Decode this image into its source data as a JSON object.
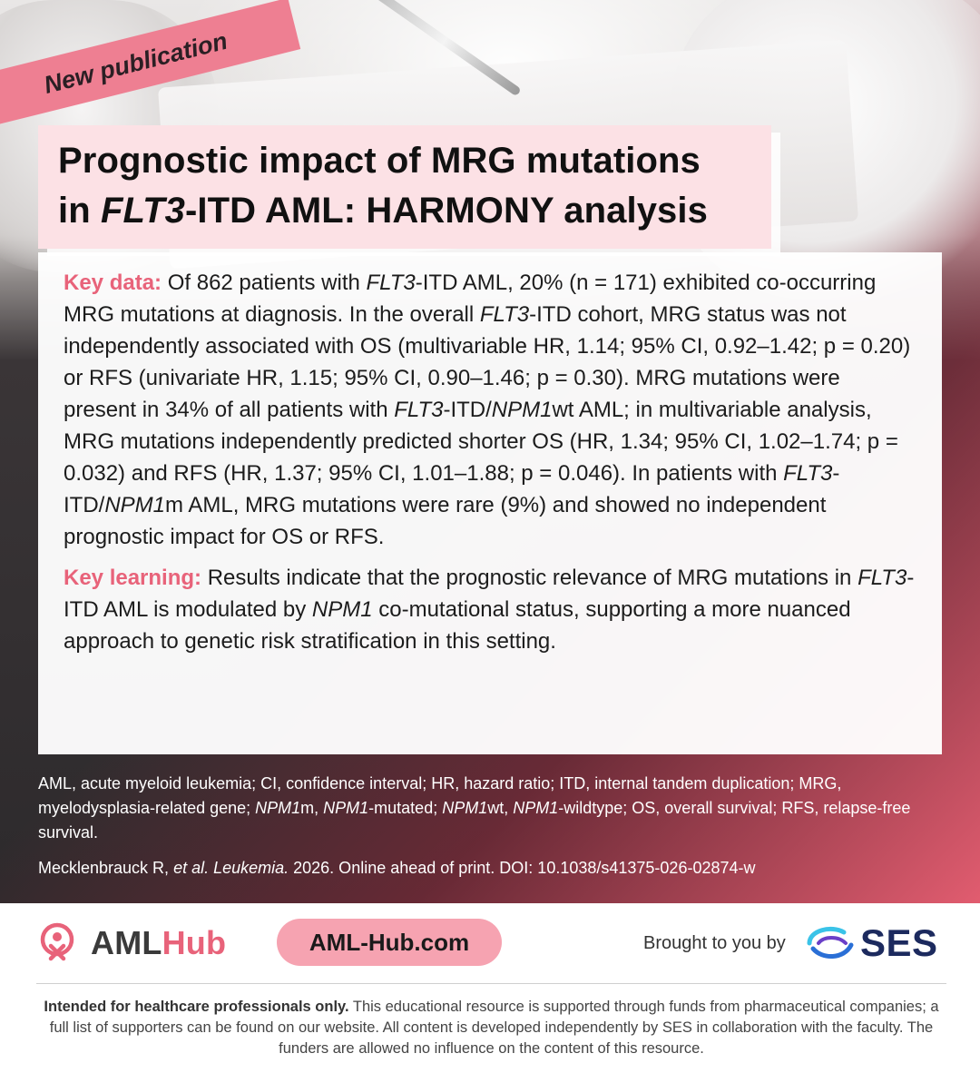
{
  "ribbon": {
    "label": "New publication"
  },
  "title": {
    "line1": "Prognostic impact of MRG mutations",
    "line2_italic": "FLT3",
    "line2_rest": "-ITD AML: HARMONY analysis"
  },
  "key_data": {
    "label": "Key data:",
    "segments": [
      {
        "t": " Of 862 patients with ",
        "i": false
      },
      {
        "t": "FLT3",
        "i": true
      },
      {
        "t": "-ITD AML, 20% (n = 171) exhibited co-occurring MRG mutations at diagnosis. In the overall ",
        "i": false
      },
      {
        "t": "FLT3",
        "i": true
      },
      {
        "t": "-ITD cohort, MRG status was not independently associated with OS (multivariable HR, 1.14; 95% CI, 0.92–1.42; p = 0.20) or RFS (univariate HR, 1.15; 95% CI, 0.90–1.46; p = 0.30). MRG mutations were present in 34% of all patients with ",
        "i": false
      },
      {
        "t": "FLT3",
        "i": true
      },
      {
        "t": "-ITD/",
        "i": false
      },
      {
        "t": "NPM1",
        "i": true
      },
      {
        "t": "wt AML; in multivariable analysis, MRG mutations independently predicted shorter OS (HR, 1.34; 95% CI, 1.02–1.74; p = 0.032) and RFS (HR, 1.37; 95% CI, 1.01–1.88; p = 0.046). In patients with ",
        "i": false
      },
      {
        "t": "FLT3",
        "i": true
      },
      {
        "t": "-ITD/",
        "i": false
      },
      {
        "t": "NPM1",
        "i": true
      },
      {
        "t": "m AML, MRG mutations were rare (9%) and showed no independent prognostic impact for OS or RFS.",
        "i": false
      }
    ]
  },
  "key_learning": {
    "label": "Key learning:",
    "segments": [
      {
        "t": " Results indicate that the prognostic relevance of MRG mutations in ",
        "i": false
      },
      {
        "t": "FLT3",
        "i": true
      },
      {
        "t": "-ITD AML is modulated by ",
        "i": false
      },
      {
        "t": "NPM1",
        "i": true
      },
      {
        "t": " co-mutational status, supporting a more nuanced approach to genetic risk stratification in this setting.",
        "i": false
      }
    ]
  },
  "abbreviations": {
    "segments": [
      {
        "t": "AML, acute myeloid leukemia; CI, confidence interval; HR, hazard ratio; ITD, internal tandem duplication; MRG, myelodysplasia-related gene; ",
        "i": false
      },
      {
        "t": "NPM1",
        "i": true
      },
      {
        "t": "m, ",
        "i": false
      },
      {
        "t": "NPM1",
        "i": true
      },
      {
        "t": "-mutated; ",
        "i": false
      },
      {
        "t": "NPM1",
        "i": true
      },
      {
        "t": "wt, ",
        "i": false
      },
      {
        "t": "NPM1",
        "i": true
      },
      {
        "t": "-wildtype; OS, overall survival; RFS, relapse-free survival.",
        "i": false
      }
    ]
  },
  "reference": {
    "segments": [
      {
        "t": "Mecklenbrauck R, ",
        "i": false
      },
      {
        "t": "et al. Leukemia.",
        "i": true
      },
      {
        "t": " 2026. Online ahead of print. DOI: 10.1038/s41375-026-02874-w",
        "i": false
      }
    ]
  },
  "brand": {
    "logo_part1": "AML",
    "logo_part2": "Hub",
    "website": "AML-Hub.com",
    "brought_by": "Brought to you by",
    "partner": "SES",
    "colors": {
      "pink": "#e8637a",
      "navy": "#1c2a5e",
      "button": "#f6a3b1"
    }
  },
  "disclaimer": {
    "bold": "Intended for healthcare professionals only.",
    "text": " This educational resource is supported through funds from pharmaceutical companies; a full list of supporters can be found on our website. All content is developed independently by SES in collaboration with the faculty. The funders are allowed no influence on the content of this resource."
  }
}
